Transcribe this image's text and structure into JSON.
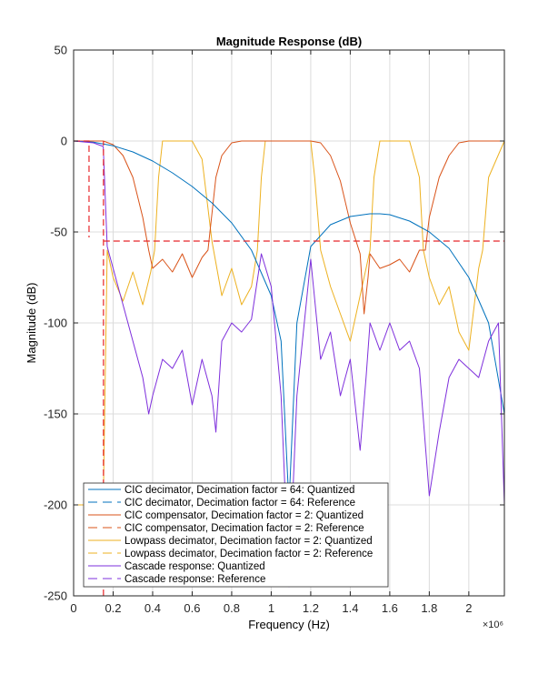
{
  "chart_data": {
    "type": "line",
    "title": "Magnitude Response (dB)",
    "xlabel": "Frequency (Hz)",
    "ylabel": "Magnitude (dB)",
    "x_multiplier_label": "×10⁶",
    "xlim": [
      0,
      2.18
    ],
    "ylim": [
      -250,
      50
    ],
    "x_ticks": [
      0,
      0.2,
      0.4,
      0.6,
      0.8,
      1,
      1.2,
      1.4,
      1.6,
      1.8,
      2
    ],
    "x_tick_labels": [
      "0",
      "0.2",
      "0.4",
      "0.6",
      "0.8",
      "1",
      "1.2",
      "1.4",
      "1.6",
      "1.8",
      "2"
    ],
    "y_ticks": [
      50,
      0,
      -50,
      -100,
      -150,
      -200,
      -250
    ],
    "y_tick_labels": [
      "50",
      "0",
      "-50",
      "-100",
      "-150",
      "-200",
      "-250"
    ],
    "grid": true,
    "legend_position": "bottom-left",
    "reference_mask": {
      "passband_edge": 0.078,
      "stopband_edge": 0.151,
      "passband_ripple_top": 0,
      "passband_ripple_bottom": -53,
      "stopband_attenuation": -55
    },
    "series": [
      {
        "name": "CIC decimator, Decimation factor = 64: Quantized",
        "color": "#0072BD",
        "style": "solid",
        "x": [
          0,
          0.1,
          0.2,
          0.3,
          0.4,
          0.5,
          0.6,
          0.7,
          0.8,
          0.9,
          1.0,
          1.05,
          1.09,
          1.13,
          1.2,
          1.3,
          1.4,
          1.5,
          1.55,
          1.6,
          1.7,
          1.8,
          1.9,
          2.0,
          2.1,
          2.18
        ],
        "y": [
          0,
          -0.6,
          -2.6,
          -6,
          -11,
          -17.5,
          -25,
          -34,
          -45,
          -60,
          -85,
          -110,
          -200,
          -100,
          -58,
          -46,
          -41.5,
          -40,
          -40,
          -40.5,
          -44,
          -50,
          -59,
          -75,
          -100,
          -150
        ]
      },
      {
        "name": "CIC decimator, Decimation factor = 64: Reference",
        "color": "#0072BD",
        "style": "dashed",
        "x": [],
        "y": []
      },
      {
        "name": "CIC compensator, Decimation factor = 2: Quantized",
        "color": "#D95319",
        "style": "solid",
        "x": [
          0,
          0.1,
          0.15,
          0.2,
          0.25,
          0.3,
          0.35,
          0.38,
          0.4,
          0.45,
          0.5,
          0.55,
          0.6,
          0.65,
          0.68,
          0.7,
          0.72,
          0.75,
          0.8,
          0.85,
          0.9,
          0.95,
          1.0,
          1.05,
          1.1,
          1.15,
          1.2,
          1.25,
          1.3,
          1.35,
          1.4,
          1.45,
          1.47,
          1.49,
          1.5,
          1.55,
          1.6,
          1.65,
          1.7,
          1.75,
          1.78,
          1.8,
          1.85,
          1.9,
          1.95,
          2.0,
          2.05,
          2.1,
          2.18
        ],
        "y": [
          0,
          0,
          0,
          -2,
          -8,
          -20,
          -42,
          -60,
          -70,
          -65,
          -72,
          -62,
          -75,
          -64,
          -60,
          -40,
          -20,
          -8,
          -1,
          0,
          0,
          0,
          0,
          0,
          0,
          0,
          0,
          -1,
          -8,
          -22,
          -45,
          -62,
          -95,
          -75,
          -62,
          -70,
          -68,
          -65,
          -72,
          -60,
          -60,
          -42,
          -20,
          -8,
          -1,
          0,
          0,
          0,
          0
        ]
      },
      {
        "name": "CIC compensator, Decimation factor = 2: Reference",
        "color": "#D95319",
        "style": "dashed",
        "x": [],
        "y": []
      },
      {
        "name": "Lowpass decimator, Decimation factor = 2: Quantized",
        "color": "#EDB120",
        "style": "solid",
        "x": [
          0,
          0.15,
          0.17,
          0.2,
          0.25,
          0.3,
          0.35,
          0.39,
          0.41,
          0.43,
          0.45,
          0.6,
          0.65,
          0.7,
          0.75,
          0.8,
          0.85,
          0.9,
          0.93,
          0.95,
          0.97,
          1.0,
          1.2,
          1.22,
          1.25,
          1.3,
          1.35,
          1.4,
          1.45,
          1.5,
          1.52,
          1.55,
          1.7,
          1.75,
          1.77,
          1.8,
          1.85,
          1.9,
          1.95,
          2.0,
          2.05,
          2.07,
          2.1,
          2.18
        ],
        "y": [
          -200,
          -200,
          -60,
          -75,
          -88,
          -72,
          -90,
          -72,
          -60,
          -20,
          0,
          0,
          -10,
          -55,
          -85,
          -70,
          -90,
          -80,
          -60,
          -20,
          0,
          0,
          0,
          -20,
          -60,
          -80,
          -95,
          -110,
          -85,
          -60,
          -20,
          0,
          0,
          -20,
          -60,
          -75,
          -90,
          -80,
          -105,
          -115,
          -70,
          -60,
          -20,
          0
        ]
      },
      {
        "name": "Lowpass decimator, Decimation factor = 2: Reference",
        "color": "#EDB120",
        "style": "dashed",
        "x": [],
        "y": []
      },
      {
        "name": "Cascade response: Quantized",
        "color": "#7E2FDC",
        "style": "solid",
        "x": [
          0,
          0.1,
          0.15,
          0.17,
          0.2,
          0.25,
          0.3,
          0.35,
          0.38,
          0.4,
          0.45,
          0.5,
          0.55,
          0.6,
          0.65,
          0.7,
          0.72,
          0.75,
          0.8,
          0.85,
          0.9,
          0.95,
          1.0,
          1.05,
          1.09,
          1.13,
          1.2,
          1.25,
          1.3,
          1.35,
          1.4,
          1.45,
          1.48,
          1.5,
          1.55,
          1.6,
          1.65,
          1.7,
          1.75,
          1.8,
          1.85,
          1.9,
          1.95,
          2.0,
          2.05,
          2.1,
          2.15,
          2.18
        ],
        "y": [
          0,
          -1,
          -3,
          -58,
          -70,
          -90,
          -110,
          -130,
          -150,
          -140,
          -120,
          -125,
          -115,
          -145,
          -120,
          -140,
          -160,
          -110,
          -100,
          -105,
          -98,
          -62,
          -80,
          -140,
          -245,
          -140,
          -65,
          -120,
          -105,
          -140,
          -120,
          -170,
          -130,
          -100,
          -115,
          -100,
          -115,
          -110,
          -125,
          -195,
          -160,
          -130,
          -120,
          -125,
          -130,
          -110,
          -100,
          -200
        ]
      },
      {
        "name": "Cascade response: Reference",
        "color": "#7E2FDC",
        "style": "dashed",
        "x": [],
        "y": []
      }
    ]
  }
}
